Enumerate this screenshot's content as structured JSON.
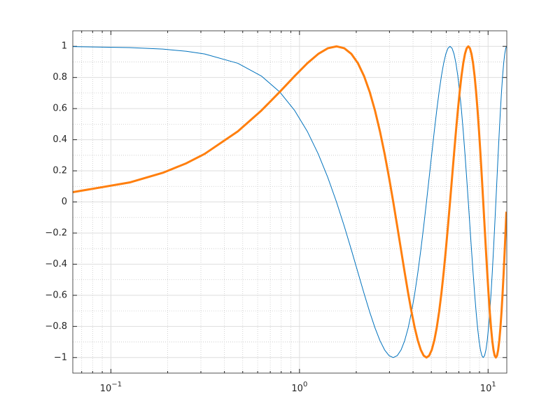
{
  "chart_data": {
    "type": "line",
    "x": [
      0.0628,
      0.1257,
      0.1885,
      0.2513,
      0.3142,
      0.4712,
      0.6283,
      0.7854,
      0.9425,
      1.0996,
      1.2566,
      1.4137,
      1.5708,
      1.7279,
      1.885,
      2.042,
      2.1991,
      2.3562,
      2.5133,
      2.6704,
      2.8274,
      2.9845,
      3.1416,
      3.2987,
      3.4558,
      3.6128,
      3.7699,
      3.927,
      4.0841,
      4.2412,
      4.3982,
      4.5553,
      4.7124,
      4.8695,
      5.0265,
      5.1836,
      5.3407,
      5.4978,
      5.6549,
      5.8119,
      5.969,
      6.1261,
      6.2832,
      6.4403,
      6.5973,
      6.7544,
      6.9115,
      7.0686,
      7.2257,
      7.3827,
      7.5398,
      7.6969,
      7.854,
      8.0111,
      8.1681,
      8.3252,
      8.4823,
      8.6394,
      8.7965,
      8.9535,
      9.1106,
      9.2677,
      9.4248,
      9.5819,
      9.7389,
      9.896,
      10.0531,
      10.2102,
      10.3673,
      10.5243,
      10.6814,
      10.8385,
      10.9956,
      11.1527,
      11.3097,
      11.4668,
      11.6239,
      11.781,
      11.9381,
      12.0951,
      12.2522,
      12.4093,
      12.5035
    ],
    "series": [
      {
        "color": "#0072bd",
        "width": 1,
        "values": [
          0.998,
          0.9921,
          0.9823,
          0.9686,
          0.9511,
          0.891,
          0.809,
          0.7071,
          0.5878,
          0.454,
          0.309,
          0.1564,
          0,
          -0.1564,
          -0.309,
          -0.454,
          -0.5878,
          -0.7071,
          -0.809,
          -0.891,
          -0.9511,
          -0.9877,
          -1,
          -0.9877,
          -0.9511,
          -0.891,
          -0.809,
          -0.7071,
          -0.5878,
          -0.454,
          -0.309,
          -0.1564,
          0,
          0.1564,
          0.309,
          0.454,
          0.5878,
          0.7071,
          0.809,
          0.891,
          0.9511,
          0.9877,
          1,
          0.9877,
          0.9511,
          0.891,
          0.809,
          0.7071,
          0.5878,
          0.454,
          0.309,
          0.1564,
          0,
          -0.1564,
          -0.309,
          -0.454,
          -0.5878,
          -0.7071,
          -0.809,
          -0.891,
          -0.9511,
          -0.9877,
          -1,
          -0.9877,
          -0.9511,
          -0.891,
          -0.809,
          -0.7071,
          -0.5878,
          -0.454,
          -0.309,
          -0.1564,
          0,
          0.1564,
          0.309,
          0.454,
          0.5878,
          0.7071,
          0.809,
          0.891,
          0.9511,
          0.9877,
          0.998
        ]
      },
      {
        "color": "#ff7f0e",
        "width": 3,
        "values": [
          0.0628,
          0.1253,
          0.1874,
          0.2487,
          0.309,
          0.454,
          0.5878,
          0.7071,
          0.809,
          0.891,
          0.9511,
          0.9877,
          1,
          0.9877,
          0.9511,
          0.891,
          0.809,
          0.7071,
          0.5878,
          0.454,
          0.309,
          0.1564,
          0,
          -0.1564,
          -0.309,
          -0.454,
          -0.5878,
          -0.7071,
          -0.809,
          -0.891,
          -0.9511,
          -0.9877,
          -1,
          -0.9877,
          -0.9511,
          -0.891,
          -0.809,
          -0.7071,
          -0.5878,
          -0.454,
          -0.309,
          -0.1564,
          0,
          0.1564,
          0.309,
          0.454,
          0.5878,
          0.7071,
          0.809,
          0.891,
          0.9511,
          0.9877,
          1,
          0.9877,
          0.9511,
          0.891,
          0.809,
          0.7071,
          0.5878,
          0.454,
          0.309,
          0.1564,
          0,
          -0.1564,
          -0.309,
          -0.454,
          -0.5878,
          -0.7071,
          -0.809,
          -0.891,
          -0.9511,
          -0.9877,
          -1,
          -0.9877,
          -0.9511,
          -0.891,
          -0.809,
          -0.7071,
          -0.5878,
          -0.454,
          -0.309,
          -0.1564,
          -0.0628
        ]
      }
    ],
    "xlog": true,
    "xlim": [
      0.0628,
      12.5664
    ],
    "ylim": [
      -1.1,
      1.1
    ],
    "xticks": [
      {
        "value": 0.1,
        "label": "10",
        "exponent": "−1"
      },
      {
        "value": 1,
        "label": "10",
        "exponent": "0"
      },
      {
        "value": 10,
        "label": "10",
        "exponent": "1"
      }
    ],
    "yticks": [
      {
        "value": -1,
        "label": "−1"
      },
      {
        "value": -0.8,
        "label": "−0.8"
      },
      {
        "value": -0.6,
        "label": "−0.6"
      },
      {
        "value": -0.4,
        "label": "−0.4"
      },
      {
        "value": -0.2,
        "label": "−0.2"
      },
      0,
      0.2,
      0.4,
      0.6,
      0.8,
      1
    ],
    "grid": true,
    "minor_grid": true
  }
}
